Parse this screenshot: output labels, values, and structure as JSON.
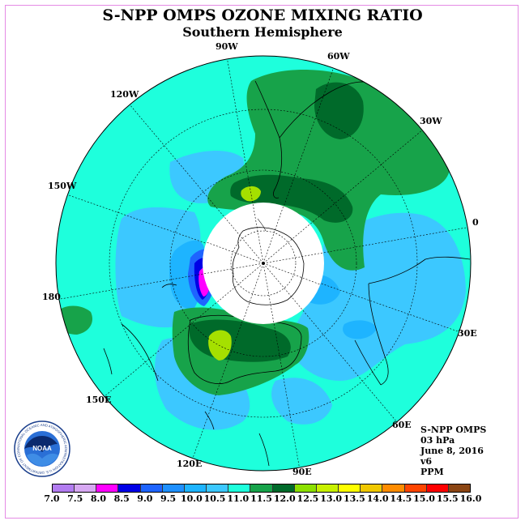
{
  "title": "S-NPP OMPS OZONE MIXING RATIO",
  "subtitle": "Southern Hemisphere",
  "longitude_labels": {
    "lon_90w": "90W",
    "lon_60w": "60W",
    "lon_30w": "30W",
    "lon_0": "0",
    "lon_30e": "30E",
    "lon_60e": "60E",
    "lon_90e": "90E",
    "lon_120e": "120E",
    "lon_150e": "150E",
    "lon_180": "180",
    "lon_150w": "150W",
    "lon_120w": "120W"
  },
  "info": {
    "product": "S-NPP OMPS",
    "level": "03 hPa",
    "date": "June 8, 2016",
    "version": "v6",
    "units": "PPM"
  },
  "logo": {
    "text": "NOAA",
    "ring_text": "NATIONAL OCEANIC AND ATMOSPHERIC ADMINISTRATION U.S. DEPARTMENT OF COMMERCE"
  },
  "colorbar": {
    "ticks": [
      "7.0",
      "7.5",
      "8.0",
      "8.5",
      "9.0",
      "9.5",
      "10.0",
      "10.5",
      "11.0",
      "11.5",
      "12.0",
      "12.5",
      "13.0",
      "13.5",
      "14.0",
      "14.5",
      "15.0",
      "15.5",
      "16.0"
    ],
    "colors": [
      "#b27cf0",
      "#d7a8f2",
      "#ff00ff",
      "#0000e6",
      "#1e64ff",
      "#1e90ff",
      "#1eb4ff",
      "#3cc8ff",
      "#1effdc",
      "#17a34a",
      "#0f8a3c",
      "#006a2a",
      "#8ce000",
      "#c8f000",
      "#ffff00",
      "#f0c800",
      "#ff8c00",
      "#ff4500",
      "#ff0000",
      "#8b4513"
    ],
    "colors_used": [
      "#b27cf0",
      "#d7a8f2",
      "#ff00ff",
      "#0000e6",
      "#1e64ff",
      "#1e90ff",
      "#1eb4ff",
      "#3cc8ff",
      "#1effdc",
      "#17a34a",
      "#006a2a",
      "#8ce000",
      "#c8f000",
      "#ffff00",
      "#f0c800",
      "#ff8c00",
      "#ff4500",
      "#ff0000",
      "#8b4513"
    ]
  },
  "map_colors": {
    "background": "#1effdc",
    "level_10_5": "#3cc8ff",
    "level_10_0": "#1eb4ff",
    "level_11_5": "#17a34a",
    "level_12_0": "#006a2a",
    "level_12_5": "#a5e000",
    "level_9_0": "#1e64ff",
    "level_8_5": "#0000e6",
    "level_8_0": "#ff00ff",
    "pole_mask": "#ffffff"
  }
}
